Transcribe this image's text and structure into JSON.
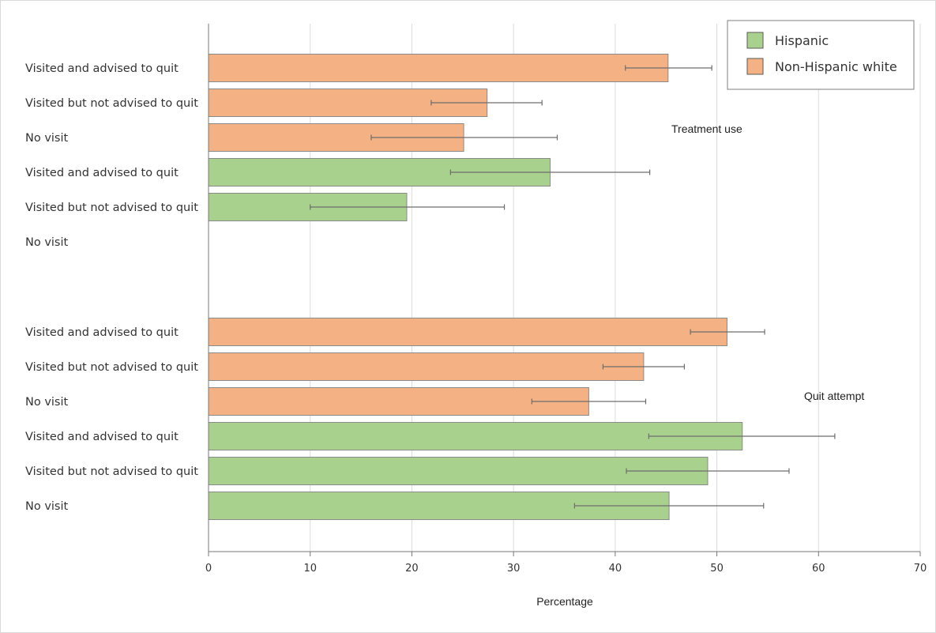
{
  "chart_data": {
    "type": "bar",
    "orientation": "horizontal",
    "xlabel": "Percentage",
    "xlim": [
      0,
      70
    ],
    "xticks": [
      0,
      10,
      20,
      30,
      40,
      50,
      60,
      70
    ],
    "grid": true,
    "legend_position": "top-right",
    "series": [
      {
        "name": "Hispanic",
        "color": "#a9d18e"
      },
      {
        "name": "Non-Hispanic white",
        "color": "#f4b183"
      }
    ],
    "panels": [
      {
        "label": "Treatment use",
        "rows": [
          {
            "category": "Visited and advised to quit",
            "series": "Non-Hispanic white",
            "value": 45.2,
            "ci": [
              41.0,
              49.5
            ]
          },
          {
            "category": "Visited but not advised to quit",
            "series": "Non-Hispanic white",
            "value": 27.4,
            "ci": [
              21.9,
              32.8
            ]
          },
          {
            "category": "No visit",
            "series": "Non-Hispanic white",
            "value": 25.1,
            "ci": [
              16.0,
              34.3
            ]
          },
          {
            "category": "Visited and advised to quit",
            "series": "Hispanic",
            "value": 33.6,
            "ci": [
              23.8,
              43.4
            ]
          },
          {
            "category": "Visited but not advised to quit",
            "series": "Hispanic",
            "value": 19.5,
            "ci": [
              10.0,
              29.1
            ]
          },
          {
            "category": "No visit",
            "series": "Hispanic",
            "value": null,
            "ci": null
          }
        ]
      },
      {
        "label": "Quit attempt",
        "rows": [
          {
            "category": "Visited and advised to quit",
            "series": "Non-Hispanic white",
            "value": 51.0,
            "ci": [
              47.4,
              54.7
            ]
          },
          {
            "category": "Visited but not advised to quit",
            "series": "Non-Hispanic white",
            "value": 42.8,
            "ci": [
              38.8,
              46.8
            ]
          },
          {
            "category": "No visit",
            "series": "Non-Hispanic white",
            "value": 37.4,
            "ci": [
              31.8,
              43.0
            ]
          },
          {
            "category": "Visited and advised to quit",
            "series": "Hispanic",
            "value": 52.5,
            "ci": [
              43.3,
              61.6
            ]
          },
          {
            "category": "Visited but not advised to quit",
            "series": "Hispanic",
            "value": 49.1,
            "ci": [
              41.1,
              57.1
            ]
          },
          {
            "category": "No visit",
            "series": "Hispanic",
            "value": 45.3,
            "ci": [
              36.0,
              54.6
            ]
          }
        ]
      }
    ]
  }
}
